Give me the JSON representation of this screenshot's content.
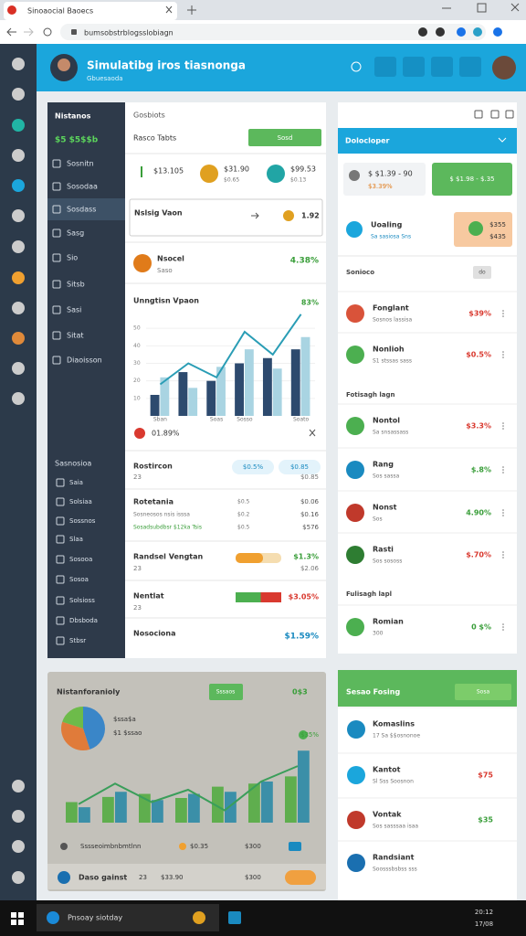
{
  "browser": {
    "tab_title": "Sinoaocial Baoecs",
    "url": "bumsobstrblogsslobiagn"
  },
  "header": {
    "title": "Simulatibg iros tiasnonga",
    "subtitle": "Gbuesaoda"
  },
  "sidebar": {
    "title": "Nistanos",
    "balance": "$5 $5$$b",
    "items": [
      "Sosnitn",
      "Sosodaa",
      "Sosdass",
      "Sasg",
      "Sio",
      "Sitsb",
      "Sasi",
      "Sitat",
      "Diaoisson"
    ],
    "section_title": "Sasnosioa",
    "items2": [
      "Saia",
      "Solsiaa",
      "Sossnos",
      "Slaa",
      "Sosooa",
      "Sosoa",
      "Solsioss",
      "Dbsboda",
      "Stbsr"
    ]
  },
  "main": {
    "title": "Gosbiots",
    "subtitle": "Rasco Tabts",
    "button": "Sosd",
    "stats": [
      {
        "value": "$13.105"
      },
      {
        "value": "$31.90",
        "sub": "$0.65"
      },
      {
        "value": "$99.53",
        "sub": "$0.13"
      }
    ],
    "search": {
      "label": "Nslsig Vaon",
      "value": "1.92"
    },
    "income": {
      "title": "Nsocel",
      "sub": "Saso",
      "value": "4.38%"
    },
    "chart": {
      "type": "bar",
      "title": "Unngtisn Vpaon",
      "badge": "83%",
      "categories": [
        "Sban",
        null,
        "Soas",
        "Sosso",
        null,
        "Soato"
      ],
      "series": [
        {
          "color": "#2d4a6e",
          "values": [
            12,
            25,
            20,
            30,
            33,
            38
          ]
        },
        {
          "color": "#a9d4e2",
          "values": [
            22,
            16,
            28,
            38,
            27,
            45
          ]
        }
      ],
      "line": {
        "color": "#2a9db5",
        "values": [
          18,
          30,
          22,
          48,
          35,
          58
        ]
      },
      "ylim": [
        0,
        60
      ],
      "yticks": [
        10,
        20,
        30,
        40,
        50
      ]
    },
    "alert": "01.89%",
    "rows": [
      {
        "title": "Rostircon",
        "sub": "23",
        "pills": [
          "$0.5%",
          "$0.85"
        ],
        "pill_sub": "$0.85"
      },
      {
        "title": "Rotetania",
        "sub": "Sosneosos nsis isssa",
        "sub2": "Sosadsubdbsr $12ka Tsis",
        "col_a": [
          "$0.5",
          "$0.2",
          "$0.5"
        ],
        "col_b": [
          "$0.06",
          "$0.16",
          "$576"
        ]
      },
      {
        "title": "Randsel Vengtan",
        "sub": "23",
        "progress": 60,
        "value": "$1.3%",
        "value2": "$2.06"
      },
      {
        "title": "Nentlat",
        "sub": "23",
        "progress": [
          55,
          45
        ],
        "value": "$3.05%"
      },
      {
        "title": "Nosociona",
        "value": "$1.59%"
      }
    ]
  },
  "right": {
    "title": "Dolocloper",
    "balance": {
      "value": "$ $1.39 - 90",
      "sub": "$3.39%"
    },
    "button": "$ $1.98 - $.35",
    "feature": {
      "title": "Uoaling",
      "sub": "Sa sasiosa Sns",
      "a": "$355",
      "b": "$435"
    },
    "section1": "Sonioco",
    "tag": "do",
    "list1": [
      {
        "title": "Fonglant",
        "sub": "Sosnos lassisa",
        "value": "$39%"
      },
      {
        "title": "Nonlioh",
        "sub": "S1 stssas sass",
        "value": "$0.5%"
      }
    ],
    "section2": "Fotisagh lagn",
    "list2": [
      {
        "title": "Nontol",
        "sub": "Sa snsassass",
        "value": "$3.3%"
      },
      {
        "title": "Rang",
        "sub": "Sos sassa",
        "value": "$.8%"
      },
      {
        "title": "Nonst",
        "sub": "Sos",
        "value": "4.90%"
      },
      {
        "title": "Rasti",
        "sub": "Sos sososs",
        "value": "$.70%"
      }
    ],
    "section3": "Fulisagh lapl",
    "list3": [
      {
        "title": "Romian",
        "sub": "300",
        "value": "0 $%"
      }
    ]
  },
  "summary": {
    "title": "Nistanforanioly",
    "button": "Sssaos",
    "badge": "0$3",
    "pie": {
      "type": "pie",
      "values": [
        45,
        35,
        20
      ],
      "colors": [
        "#3a86c8",
        "#e07b3a",
        "#6dbb4a"
      ]
    },
    "legend": [
      "$ssa$a",
      "$1 $ssao"
    ],
    "trend": "$35%",
    "chart": {
      "type": "bar",
      "ylim": [
        0,
        80
      ],
      "series": [
        {
          "color": "#5fae4e",
          "values": [
            20,
            25,
            28,
            24,
            35,
            38,
            45
          ]
        },
        {
          "color": "#3b8fa8",
          "values": [
            15,
            30,
            22,
            28,
            30,
            40,
            70
          ]
        }
      ],
      "line": {
        "color": "#3a9e5a",
        "values": [
          18,
          38,
          20,
          32,
          12,
          40,
          55
        ]
      }
    },
    "footer": {
      "text": "Sssseoimbnbmtlnn",
      "a": "$0.35",
      "b": "$300"
    },
    "bottom": {
      "title": "Daso gainst",
      "n": "23",
      "a": "$33.90",
      "b": "$300"
    }
  },
  "feed": {
    "title": "Sesao Fosing",
    "button": "Sosa",
    "items": [
      {
        "title": "Komaslins",
        "sub": "17 Sa $$osnonoe"
      },
      {
        "title": "Kantot",
        "sub": "Sl Sss Soosnon",
        "value": "$75"
      },
      {
        "title": "Vontak",
        "sub": "Sos sasssaa isaa",
        "value": "$35"
      },
      {
        "title": "Randsiant",
        "sub": "Soosssbsbss sss"
      }
    ]
  },
  "taskbar": {
    "search": "Pnsoay siotday",
    "time": "20:12",
    "date": "17/08"
  }
}
